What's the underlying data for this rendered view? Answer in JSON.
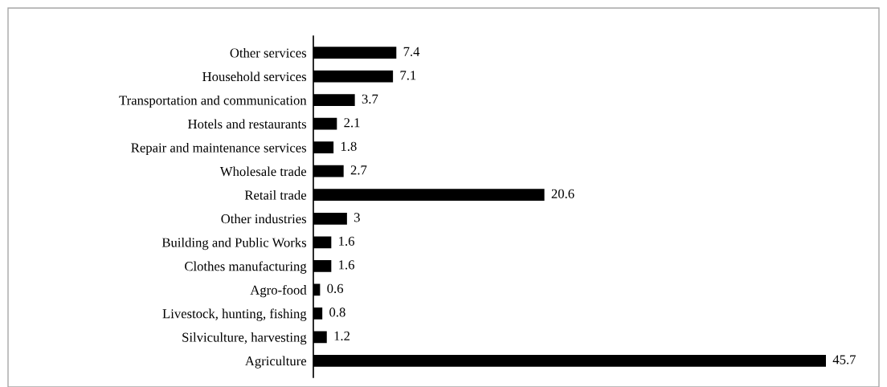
{
  "chart_data": {
    "type": "bar",
    "orientation": "horizontal",
    "categories": [
      "Other services",
      "Household services",
      "Transportation and communication",
      "Hotels and restaurants",
      "Repair and maintenance services",
      "Wholesale trade",
      "Retail trade",
      "Other industries",
      "Building and Public Works",
      "Clothes manufacturing",
      "Agro-food",
      "Livestock, hunting, fishing",
      "Silviculture, harvesting",
      "Agriculture"
    ],
    "values": [
      7.4,
      7.1,
      3.7,
      2.1,
      1.8,
      2.7,
      20.6,
      3,
      1.6,
      1.6,
      0.6,
      0.8,
      1.2,
      45.7
    ],
    "color": "#000000",
    "data_labels": true,
    "grid": false,
    "legend": false,
    "tick_labels": "y"
  }
}
